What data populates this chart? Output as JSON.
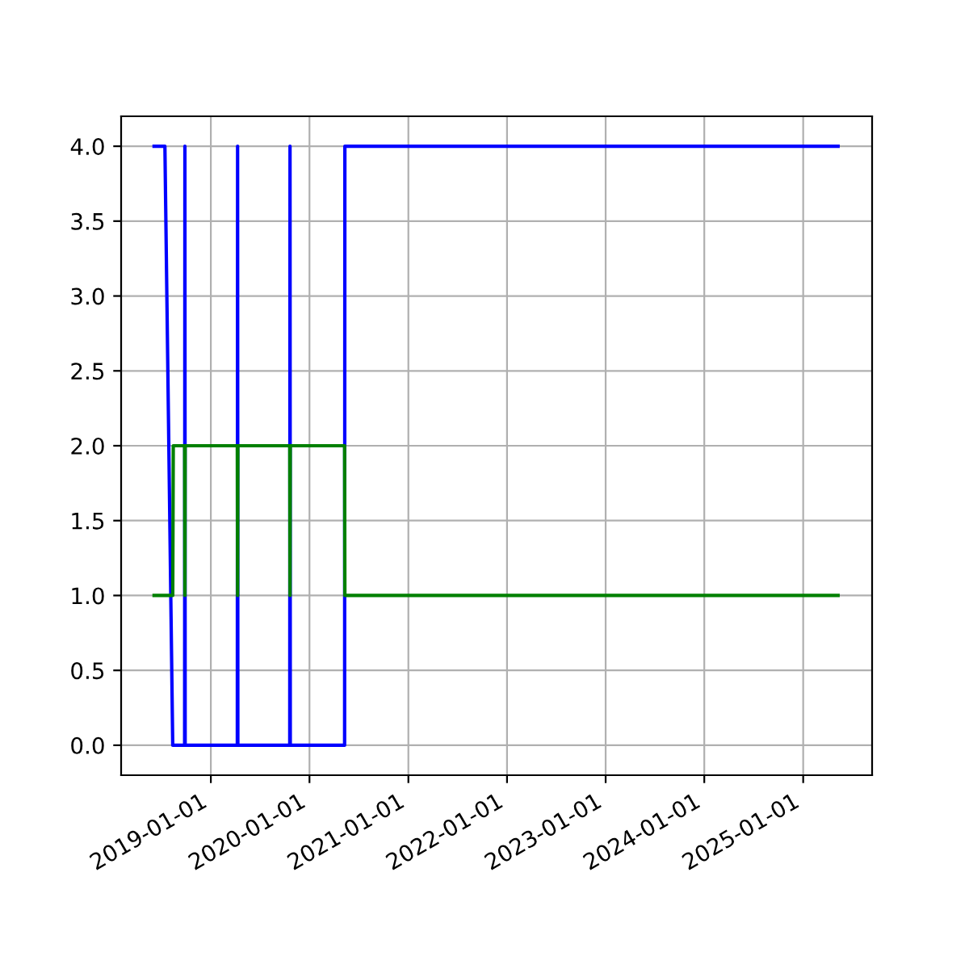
{
  "chart_data": {
    "type": "line",
    "series": [
      {
        "color": "#0000ff",
        "x": [
          "2018-06-05",
          "2018-07-15",
          "2018-08-13",
          "2018-09-26",
          "2018-09-27",
          "2018-09-28",
          "2019-04-09",
          "2019-04-10",
          "2019-04-11",
          "2019-10-20",
          "2019-10-21",
          "2019-10-22",
          "2020-05-10",
          "2020-05-11",
          "2025-05-10"
        ],
        "values": [
          4,
          4,
          0,
          0,
          4,
          0,
          0,
          4,
          0,
          0,
          4,
          0,
          0,
          4,
          4
        ]
      },
      {
        "color": "#008000",
        "x": [
          "2018-06-05",
          "2018-08-13",
          "2018-08-15",
          "2018-09-26",
          "2018-09-27",
          "2018-09-28",
          "2019-04-09",
          "2019-04-10",
          "2019-04-11",
          "2019-10-20",
          "2019-10-21",
          "2019-10-22",
          "2020-05-10",
          "2020-05-11",
          "2025-05-10"
        ],
        "values": [
          1,
          1,
          2,
          2,
          1,
          2,
          2,
          1,
          2,
          2,
          1,
          2,
          2,
          1,
          1
        ]
      }
    ],
    "xlim": [
      "2018-02-03",
      "2025-09-13"
    ],
    "xticks": [
      {
        "value": "2019-01-01",
        "label": "2019-01-01"
      },
      {
        "value": "2020-01-01",
        "label": "2020-01-01"
      },
      {
        "value": "2021-01-01",
        "label": "2021-01-01"
      },
      {
        "value": "2022-01-01",
        "label": "2022-01-01"
      },
      {
        "value": "2023-01-01",
        "label": "2023-01-01"
      },
      {
        "value": "2024-01-01",
        "label": "2024-01-01"
      },
      {
        "value": "2025-01-01",
        "label": "2025-01-01"
      }
    ],
    "ylim": [
      -0.2,
      4.2
    ],
    "yticks": [
      {
        "value": 0,
        "label": "0.0"
      },
      {
        "value": 0.5,
        "label": "0.5"
      },
      {
        "value": 1,
        "label": "1.0"
      },
      {
        "value": 1.5,
        "label": "1.5"
      },
      {
        "value": 2,
        "label": "2.0"
      },
      {
        "value": 2.5,
        "label": "2.5"
      },
      {
        "value": 3,
        "label": "3.0"
      },
      {
        "value": 3.5,
        "label": "3.5"
      },
      {
        "value": 4,
        "label": "4.0"
      }
    ],
    "grid": true
  }
}
